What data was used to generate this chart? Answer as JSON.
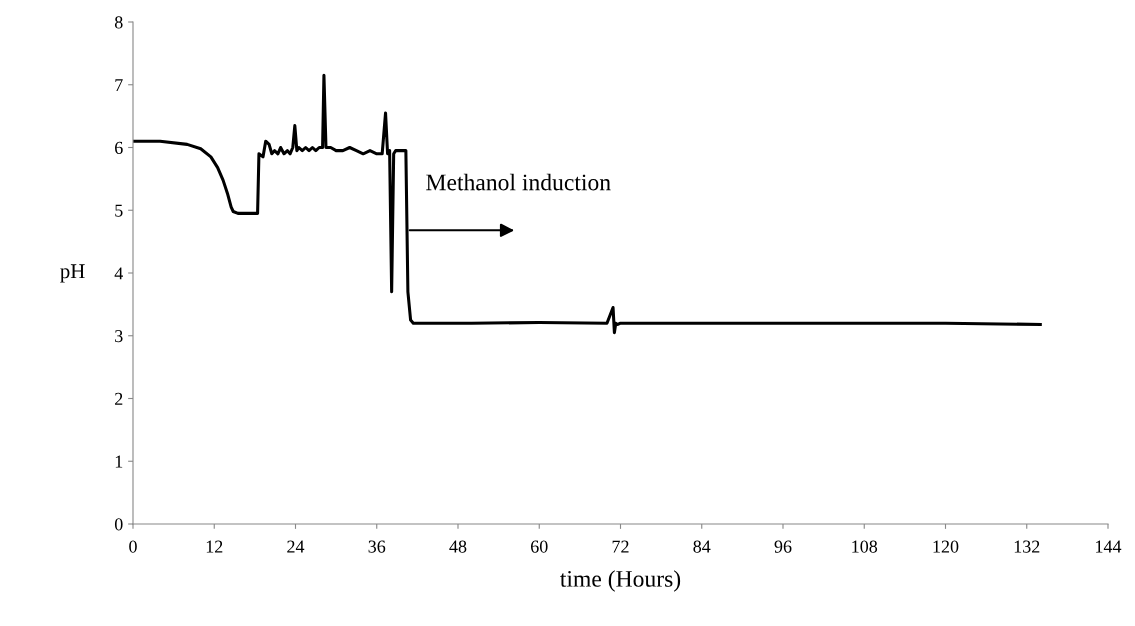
{
  "chart_data": {
    "type": "line",
    "xlabel": "time (Hours)",
    "ylabel": "pH",
    "xlim": [
      0,
      144
    ],
    "ylim": [
      0,
      8
    ],
    "xticks": [
      0,
      12,
      24,
      36,
      48,
      60,
      72,
      84,
      96,
      108,
      120,
      132,
      144
    ],
    "yticks": [
      0,
      1,
      2,
      3,
      4,
      5,
      6,
      7,
      8
    ],
    "grid": false,
    "legend": false,
    "marker": "none",
    "line_style": "solid",
    "series": [
      {
        "color": "#000000",
        "x": [
          0,
          4,
          8,
          10,
          11.5,
          12.5,
          13.3,
          14,
          14.5,
          14.8,
          15.5,
          18.4,
          18.6,
          19.2,
          19.6,
          20.1,
          20.5,
          20.9,
          21.4,
          21.8,
          22.3,
          22.8,
          23.2,
          23.6,
          23.9,
          24.2,
          24.5,
          25,
          25.5,
          26,
          26.5,
          27,
          27.5,
          28,
          28.2,
          28.5,
          28.8,
          29.2,
          30,
          31,
          32,
          33,
          34,
          35,
          36,
          36.8,
          37.3,
          37.6,
          37.9,
          38.2,
          38.5,
          38.8,
          39.2,
          40.3,
          40.6,
          41,
          41.4,
          43,
          50,
          60,
          70,
          70.9,
          71.1,
          71.3,
          71.6,
          72,
          80,
          100,
          120,
          134
        ],
        "values": [
          6.1,
          6.1,
          6.05,
          5.98,
          5.85,
          5.68,
          5.48,
          5.25,
          5.05,
          4.98,
          4.95,
          4.95,
          5.9,
          5.85,
          6.1,
          6.05,
          5.9,
          5.95,
          5.9,
          6.0,
          5.9,
          5.95,
          5.9,
          6.0,
          6.35,
          5.95,
          6.0,
          5.95,
          6.0,
          5.95,
          6.0,
          5.95,
          6.0,
          6.0,
          7.15,
          6.0,
          6.0,
          6.0,
          5.95,
          5.95,
          6.0,
          5.95,
          5.9,
          5.95,
          5.9,
          5.9,
          6.55,
          5.9,
          5.95,
          3.7,
          5.9,
          5.95,
          5.95,
          5.95,
          3.7,
          3.25,
          3.2,
          3.2,
          3.2,
          3.21,
          3.2,
          3.45,
          3.05,
          3.2,
          3.18,
          3.2,
          3.2,
          3.2,
          3.2,
          3.18
        ]
      }
    ],
    "annotations": [
      "Methanol induction"
    ]
  }
}
